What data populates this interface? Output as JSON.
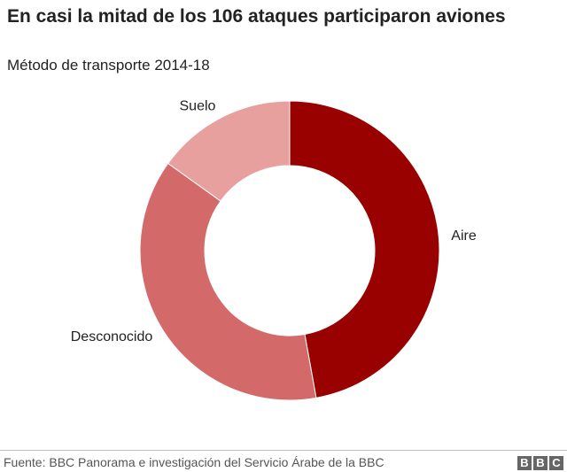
{
  "header": {
    "title": "En casi la mitad de los 106 ataques participaron aviones",
    "subtitle": "Método de transporte 2014-18"
  },
  "chart_data": {
    "type": "pie",
    "variant": "donut",
    "title": "En casi la mitad de los 106 ataques participaron aviones",
    "subtitle": "Método de transporte 2014-18",
    "total": 106,
    "series": [
      {
        "label": "Aire",
        "value": 50,
        "color": "#990000"
      },
      {
        "label": "Desconocido",
        "value": 40,
        "color": "#d4696a"
      },
      {
        "label": "Suelo",
        "value": 16,
        "color": "#e8a09f"
      }
    ],
    "legend": "none",
    "labels_on_slices": true
  },
  "footer": {
    "source": "Fuente: BBC Panorama e investigación del Servicio Árabe de la BBC",
    "logo": [
      "B",
      "B",
      "C"
    ]
  }
}
